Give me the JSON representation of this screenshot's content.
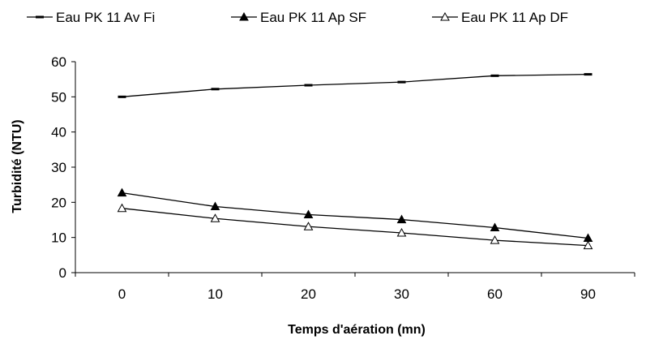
{
  "chart_data": {
    "type": "line",
    "categories": [
      "0",
      "10",
      "20",
      "30",
      "60",
      "90"
    ],
    "series": [
      {
        "name": "Eau PK 11 Av Fi",
        "marker": "dash",
        "values": [
          50,
          52.2,
          53.3,
          54.2,
          56,
          56.4
        ]
      },
      {
        "name": "Eau PK 11 Ap SF",
        "marker": "filled-triangle",
        "values": [
          22.7,
          18.8,
          16.5,
          15.1,
          12.8,
          9.8
        ]
      },
      {
        "name": "Eau PK 11 Ap DF",
        "marker": "open-triangle",
        "values": [
          18.3,
          15.4,
          13.1,
          11.3,
          9.2,
          7.7
        ]
      }
    ],
    "title": "",
    "xlabel": "Temps d'aération (mn)",
    "ylabel": "Turbidité (NTU)",
    "ylim": [
      0,
      60
    ],
    "yticks": [
      0,
      10,
      20,
      30,
      40,
      50,
      60
    ],
    "grid": false,
    "legend_position": "top",
    "color": "#000000"
  }
}
